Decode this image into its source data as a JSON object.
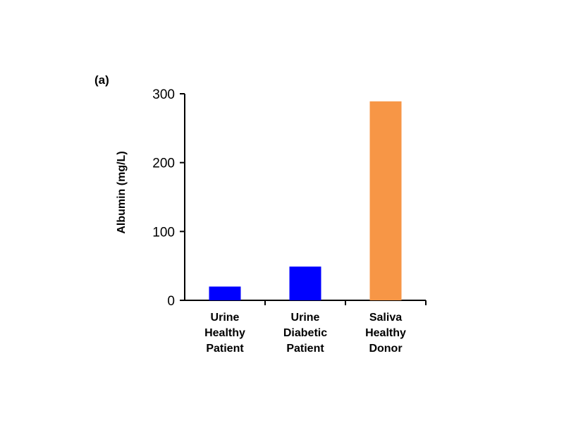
{
  "chart_data": {
    "type": "bar",
    "panel_label": "(a)",
    "ylabel": "Albumin (mg/L)",
    "xlabel": "",
    "ylim": [
      0,
      300
    ],
    "yticks": [
      0,
      100,
      200,
      300
    ],
    "grid": false,
    "categories": [
      [
        "Urine",
        "Healthy",
        "Patient"
      ],
      [
        "Urine",
        "Diabetic",
        "Patient"
      ],
      [
        "Saliva",
        "Healthy",
        "Donor"
      ]
    ],
    "values": [
      20,
      49,
      289
    ],
    "colors": [
      "#0000ff",
      "#0000ff",
      "#f79646"
    ]
  }
}
